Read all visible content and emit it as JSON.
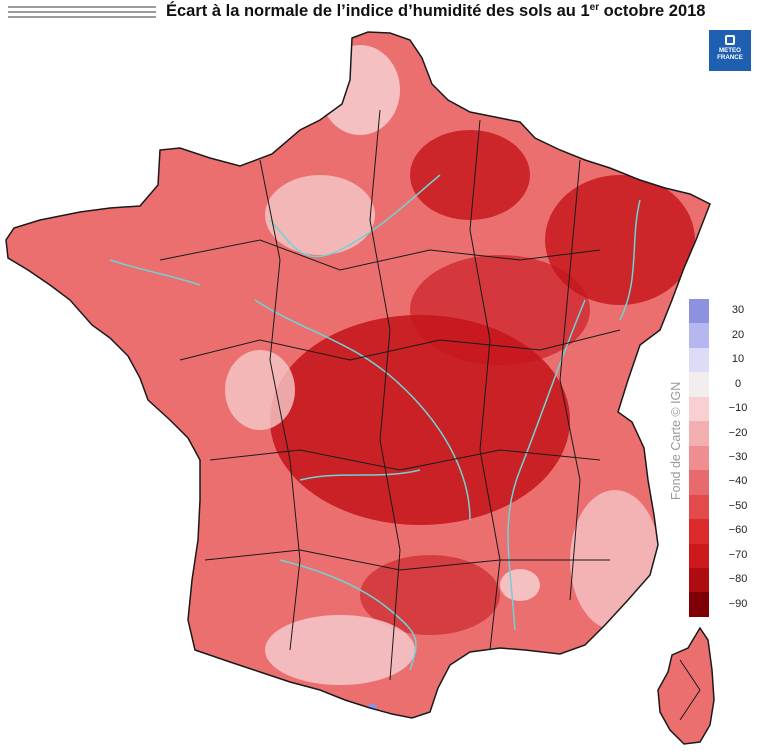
{
  "title": {
    "prefix": "Écart à la normale de l’indice d’humidité des sols au 1",
    "superscript": "er",
    "suffix": " octobre 2018"
  },
  "logo": {
    "line1": "METEO",
    "line2": "FRANCE"
  },
  "credit": "Fond de Carte © IGN",
  "legend": {
    "labels": [
      "30",
      "20",
      "10",
      "0",
      "−10",
      "−20",
      "−30",
      "−40",
      "−50",
      "−60",
      "−70",
      "−80",
      "−90"
    ],
    "colors": [
      "#8c92e0",
      "#b4b8ee",
      "#dcdcf6",
      "#f3eded",
      "#f8d0d2",
      "#f3aeb0",
      "#ee8e90",
      "#e86a6c",
      "#e24a4c",
      "#db2a2c",
      "#cc1a1c",
      "#ad0c10",
      "#7e0006"
    ]
  },
  "colors": {
    "land": "#ec6f70",
    "dark_deficit": "#c4141a",
    "light_deficit": "#f6c9cb",
    "rivers": "#6fd3d5",
    "borders": "#1a1a1a",
    "logo": "#1f5fb2"
  }
}
